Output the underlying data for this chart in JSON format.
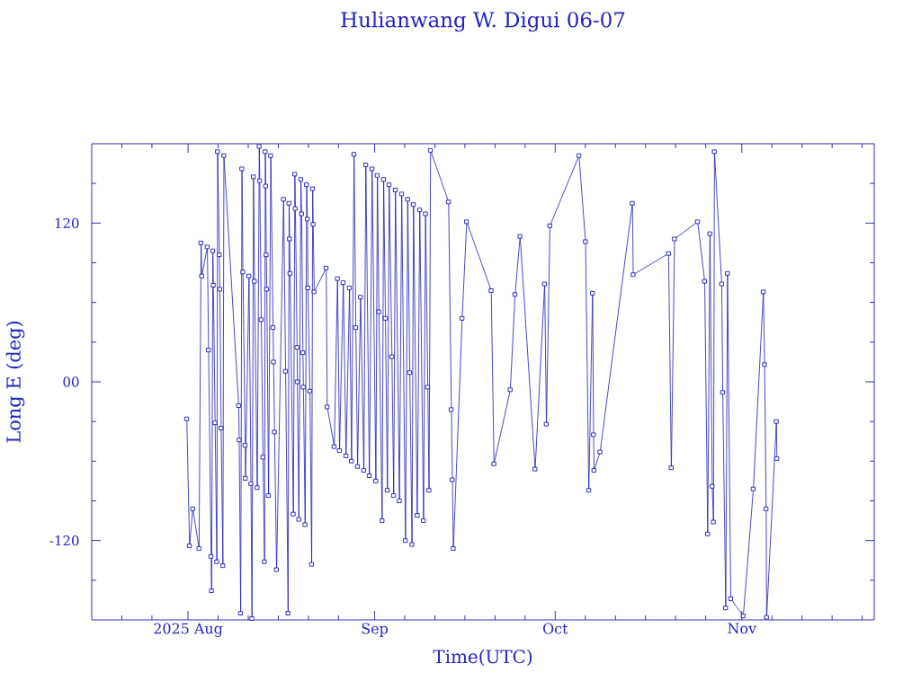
{
  "chart_data": {
    "type": "line",
    "title": "Hulianwang W. Digui 06-07",
    "xlabel": "Time(UTC)",
    "ylabel": "Long E (deg)",
    "color": "#1c1cb4",
    "marker": "square",
    "line_style": "solid",
    "xlim": [
      "2025-07-16",
      "2025-11-23"
    ],
    "ylim": [
      -180,
      180
    ],
    "xticks": [
      {
        "value": "2025-07-21",
        "label": null
      },
      {
        "value": "2025-07-26",
        "label": null
      },
      {
        "value": "2025-08-01",
        "label": "2025 Aug"
      },
      {
        "value": "2025-08-06",
        "label": null
      },
      {
        "value": "2025-08-11",
        "label": null
      },
      {
        "value": "2025-08-16",
        "label": null
      },
      {
        "value": "2025-08-21",
        "label": null
      },
      {
        "value": "2025-08-26",
        "label": null
      },
      {
        "value": "2025-09-01",
        "label": "Sep"
      },
      {
        "value": "2025-09-06",
        "label": null
      },
      {
        "value": "2025-09-11",
        "label": null
      },
      {
        "value": "2025-09-16",
        "label": null
      },
      {
        "value": "2025-09-21",
        "label": null
      },
      {
        "value": "2025-09-26",
        "label": null
      },
      {
        "value": "2025-10-01",
        "label": "Oct"
      },
      {
        "value": "2025-10-06",
        "label": null
      },
      {
        "value": "2025-10-11",
        "label": null
      },
      {
        "value": "2025-10-16",
        "label": null
      },
      {
        "value": "2025-10-21",
        "label": null
      },
      {
        "value": "2025-10-26",
        "label": null
      },
      {
        "value": "2025-11-01",
        "label": "Nov"
      },
      {
        "value": "2025-11-06",
        "label": null
      },
      {
        "value": "2025-11-11",
        "label": null
      },
      {
        "value": "2025-11-16",
        "label": null
      },
      {
        "value": "2025-11-21",
        "label": null
      }
    ],
    "yticks": [
      {
        "value": -150,
        "label": null
      },
      -120,
      {
        "value": -90,
        "label": null
      },
      {
        "value": -60,
        "label": null
      },
      {
        "value": -30,
        "label": null
      },
      {
        "value": 0,
        "label": "00"
      },
      {
        "value": 30,
        "label": null
      },
      {
        "value": 60,
        "label": null
      },
      {
        "value": 90,
        "label": null
      },
      120,
      {
        "value": 150,
        "label": null
      }
    ],
    "x": [
      "2025-07-31T19:00",
      "2025-08-01T06:00",
      "2025-08-01T19:00",
      "2025-08-02T20:00",
      "2025-08-03T04:00",
      "2025-08-03T07:00",
      "2025-08-04T05:00",
      "2025-08-04T10:00",
      "2025-08-04T20:00",
      "2025-08-04T22:00",
      "2025-08-05T03:00",
      "2025-08-05T05:00",
      "2025-08-05T12:00",
      "2025-08-05T19:00",
      "2025-08-05T22:00",
      "2025-08-06T05:00",
      "2025-08-06T07:00",
      "2025-08-06T12:00",
      "2025-08-06T19:00",
      "2025-08-06T23:00",
      "2025-08-09T10:00",
      "2025-08-09T12:00",
      "2025-08-09T18:00",
      "2025-08-09T23:00",
      "2025-08-10T03:00",
      "2025-08-10T12:00",
      "2025-08-10T13:00",
      "2025-08-11T03:00",
      "2025-08-11T11:00",
      "2025-08-11T15:00",
      "2025-08-11T21:00",
      "2025-08-12T01:00",
      "2025-08-12T12:00",
      "2025-08-12T20:00",
      "2025-08-12T22:00",
      "2025-08-13T04:00",
      "2025-08-13T11:00",
      "2025-08-13T17:00",
      "2025-08-13T20:00",
      "2025-08-13T22:00",
      "2025-08-14T00:00",
      "2025-08-14T02:00",
      "2025-08-14T09:00",
      "2025-08-14T18:00",
      "2025-08-15T03:00",
      "2025-08-15T05:00",
      "2025-08-15T09:00",
      "2025-08-15T17:00",
      "2025-08-16T21:00",
      "2025-08-17T05:00",
      "2025-08-17T15:00",
      "2025-08-17T19:00",
      "2025-08-17T21:00",
      "2025-08-17T23:00",
      "2025-08-18T12:00",
      "2025-08-18T18:00",
      "2025-08-18T20:00",
      "2025-08-19T03:00",
      "2025-08-19T04:00",
      "2025-08-19T10:00",
      "2025-08-19T18:00",
      "2025-08-19T21:00",
      "2025-08-20T02:00",
      "2025-08-20T04:00",
      "2025-08-20T11:00",
      "2025-08-20T17:00",
      "2025-08-20T20:00",
      "2025-08-20T22:00",
      "2025-08-21T06:00",
      "2025-08-21T13:00",
      "2025-08-21T17:00",
      "2025-08-21T19:00",
      "2025-08-21T23:00",
      "2025-08-23T23:00",
      "2025-08-24T03:00",
      "2025-08-25T07:00",
      "2025-08-25T20:00",
      "2025-08-26T04:00",
      "2025-08-26T19:00",
      "2025-08-27T06:00",
      "2025-08-27T20:00",
      "2025-08-28T04:00",
      "2025-08-28T14:00",
      "2025-08-28T21:00",
      "2025-08-29T04:00",
      "2025-08-29T16:00",
      "2025-08-30T05:00",
      "2025-08-30T13:00",
      "2025-08-31T03:00",
      "2025-08-31T14:00",
      "2025-09-01T05:00",
      "2025-09-01T11:00",
      "2025-09-01T17:00",
      "2025-09-02T06:00",
      "2025-09-02T12:00",
      "2025-09-02T19:00",
      "2025-09-03T03:00",
      "2025-09-03T10:00",
      "2025-09-03T21:00",
      "2025-09-04T04:00",
      "2025-09-04T11:00",
      "2025-09-05T03:00",
      "2025-09-05T12:00",
      "2025-09-06T03:00",
      "2025-09-06T12:00",
      "2025-09-06T20:00",
      "2025-09-07T05:00",
      "2025-09-07T11:00",
      "2025-09-08T02:00",
      "2025-09-08T12:00",
      "2025-09-09T03:00",
      "2025-09-09T11:00",
      "2025-09-09T20:00",
      "2025-09-10T01:00",
      "2025-09-10T07:00",
      "2025-09-13T07:00",
      "2025-09-13T18:00",
      "2025-09-13T22:00",
      "2025-09-14T02:00",
      "2025-09-15T13:00",
      "2025-09-16T07:00",
      "2025-09-20T09:00",
      "2025-09-20T20:00",
      "2025-09-23T13:00",
      "2025-09-24T08:00",
      "2025-09-25T04:00",
      "2025-09-27T16:00",
      "2025-09-29T06:00",
      "2025-09-29T13:00",
      "2025-09-30T03:00",
      "2025-10-04T23:00",
      "2025-10-06T01:00",
      "2025-10-06T14:00",
      "2025-10-07T05:00",
      "2025-10-07T09:00",
      "2025-10-07T11:00",
      "2025-10-08T11:00",
      "2025-10-13T20:00",
      "2025-10-13T23:00",
      "2025-10-19T20:00",
      "2025-10-20T07:00",
      "2025-10-20T20:00",
      "2025-10-24T16:00",
      "2025-10-25T20:00",
      "2025-10-26T08:00",
      "2025-10-26T17:00",
      "2025-10-27T02:00",
      "2025-10-27T07:00",
      "2025-10-27T11:00",
      "2025-10-28T16:00",
      "2025-10-28T20:00",
      "2025-10-29T08:00",
      "2025-10-29T15:00",
      "2025-10-30T04:00",
      "2025-11-01T06:00",
      "2025-11-02T22:00",
      "2025-11-04T14:00",
      "2025-11-04T19:00",
      "2025-11-05T01:00",
      "2025-11-05T03:00",
      "2025-11-06T18:00",
      "2025-11-06T20:00"
    ],
    "values": [
      -28,
      -124,
      -96,
      -126,
      105,
      80,
      102,
      24,
      -132,
      -158,
      99,
      73,
      -31,
      -136,
      174,
      96,
      70,
      -35,
      -139,
      171,
      -18,
      -44,
      -175,
      161,
      83,
      -48,
      -73,
      80,
      -77,
      -179,
      155,
      76,
      -80,
      178,
      152,
      47,
      -57,
      -136,
      174,
      148,
      96,
      70,
      -86,
      171,
      41,
      15,
      -38,
      -142,
      138,
      8,
      -175,
      135,
      108,
      82,
      -100,
      157,
      131,
      26,
      0,
      -104,
      153,
      127,
      22,
      -4,
      -108,
      149,
      123,
      71,
      -7,
      -138,
      146,
      119,
      68,
      86,
      -19,
      -49,
      78,
      -52,
      75,
      -56,
      71,
      -60,
      172,
      41,
      -64,
      64,
      -67,
      164,
      -71,
      161,
      -75,
      156,
      53,
      -105,
      153,
      48,
      -82,
      149,
      19,
      -86,
      145,
      -90,
      142,
      -120,
      138,
      7,
      -123,
      134,
      -101,
      130,
      -105,
      127,
      -4,
      -82,
      175,
      136,
      -21,
      -74,
      -126,
      48,
      121,
      69,
      -62,
      -6,
      66,
      110,
      -66,
      74,
      -32,
      118,
      171,
      106,
      -82,
      67,
      -40,
      -67,
      -53,
      135,
      81,
      97,
      -65,
      108,
      121,
      76,
      -115,
      112,
      -79,
      -106,
      174,
      74,
      -8,
      -171,
      82,
      -164,
      -177,
      -81,
      68,
      13,
      -96,
      -178,
      -30,
      -58
    ]
  }
}
